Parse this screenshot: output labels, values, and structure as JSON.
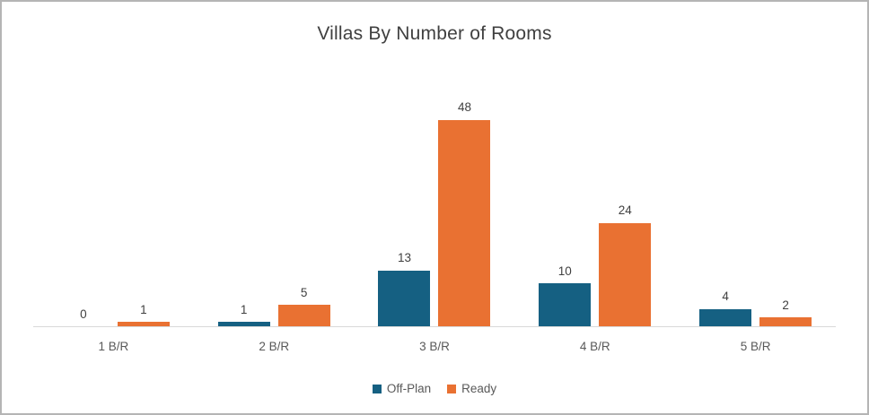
{
  "chart_data": {
    "type": "bar",
    "title": "Villas By Number of Rooms",
    "categories": [
      "1 B/R",
      "2 B/R",
      "3 B/R",
      "4 B/R",
      "5 B/R"
    ],
    "series": [
      {
        "name": "Off-Plan",
        "color": "#156082",
        "values": [
          0,
          1,
          13,
          10,
          4
        ]
      },
      {
        "name": "Ready",
        "color": "#E97132",
        "values": [
          1,
          5,
          48,
          24,
          2
        ]
      }
    ],
    "ylim": [
      0,
      48
    ],
    "grid": false,
    "data_labels": true,
    "legend_position": "bottom",
    "title_color": "#404040",
    "label_color": "#404040",
    "axis_text_color": "#595959",
    "axis_line_color": "#d9d9d9"
  }
}
